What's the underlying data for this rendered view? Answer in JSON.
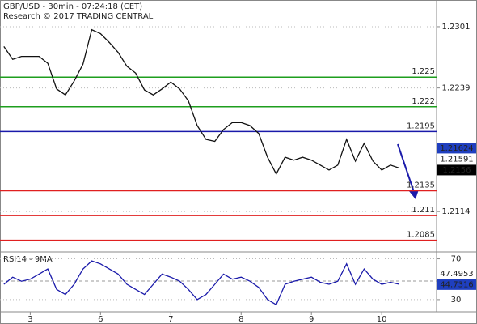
{
  "chart_data": [
    {
      "type": "line",
      "title": "GBP/USD - 30min - 07:24:18 (CET)",
      "subtitle": "Research © 2017 TRADING CENTRAL",
      "x": [
        -0.375,
        -0.25,
        -0.125,
        0,
        0.125,
        0.25,
        0.375,
        0.5,
        0.625,
        0.75,
        0.875,
        1,
        1.125,
        1.25,
        1.375,
        1.5,
        1.625,
        1.75,
        1.875,
        2,
        2.125,
        2.25,
        2.375,
        2.5,
        2.625,
        2.75,
        2.875,
        3,
        3.125,
        3.25,
        3.375,
        3.5,
        3.625,
        3.75,
        3.875,
        4,
        4.125,
        4.25,
        4.375,
        4.5,
        4.625,
        4.75,
        4.875,
        5,
        5.125,
        5.25
      ],
      "series": [
        {
          "name": "GBP/USD",
          "color": "#111111",
          "values": [
            1.2281,
            1.2268,
            1.2271,
            1.2271,
            1.2271,
            1.2264,
            1.2238,
            1.2232,
            1.2246,
            1.2263,
            1.2298,
            1.2294,
            1.2285,
            1.2275,
            1.2261,
            1.2254,
            1.2237,
            1.2232,
            1.2238,
            1.2245,
            1.2238,
            1.2226,
            1.2201,
            1.2187,
            1.2185,
            1.2197,
            1.2204,
            1.2204,
            1.2201,
            1.2193,
            1.2169,
            1.2152,
            1.2169,
            1.2166,
            1.2169,
            1.2166,
            1.2161,
            1.2156,
            1.2161,
            1.2187,
            1.2165,
            1.2183,
            1.2165,
            1.2156,
            1.2161,
            1.2158
          ]
        }
      ],
      "xlim": [
        -0.43,
        5.78
      ],
      "ylim": [
        1.2074,
        1.2328
      ],
      "yticks": [
        1.2301,
        1.2239,
        1.2114
      ],
      "grid": true,
      "levels": [
        {
          "value": 1.225,
          "color": "#1e9e1e"
        },
        {
          "value": 1.222,
          "color": "#1e9e1e"
        },
        {
          "value": 1.2195,
          "color": "#1a1aaa"
        },
        {
          "value": 1.2135,
          "color": "#e02020"
        },
        {
          "value": 1.211,
          "color": "#e02020"
        },
        {
          "value": 1.2085,
          "color": "#e02020"
        }
      ],
      "tags": [
        {
          "value": 1.21624,
          "background": "#1f3fbf",
          "color": "#ffffff"
        },
        {
          "value": 1.21591,
          "background": "#ffffff",
          "color": "#e02020"
        },
        {
          "value": 1.2156,
          "background": "#000000",
          "color": "#ffffff"
        }
      ]
    },
    {
      "type": "line",
      "title": "RSI14 - 9MA",
      "x": [
        -0.375,
        -0.25,
        -0.125,
        0,
        0.125,
        0.25,
        0.375,
        0.5,
        0.625,
        0.75,
        0.875,
        1,
        1.125,
        1.25,
        1.375,
        1.5,
        1.625,
        1.75,
        1.875,
        2,
        2.125,
        2.25,
        2.375,
        2.5,
        2.625,
        2.75,
        2.875,
        3,
        3.125,
        3.25,
        3.375,
        3.5,
        3.625,
        3.75,
        3.875,
        4,
        4.125,
        4.25,
        4.375,
        4.5,
        4.625,
        4.75,
        4.875,
        5,
        5.125,
        5.25
      ],
      "series": [
        {
          "name": "RSI14",
          "color": "#1a1aaa",
          "values": [
            45,
            52,
            48,
            50,
            55,
            60,
            40,
            35,
            45,
            60,
            68,
            65,
            60,
            55,
            45,
            40,
            35,
            45,
            55,
            52,
            48,
            40,
            30,
            35,
            45,
            55,
            50,
            52,
            48,
            42,
            30,
            25,
            45,
            48,
            50,
            52,
            47,
            45,
            48,
            65,
            45,
            60,
            50,
            45,
            47,
            45
          ]
        }
      ],
      "xlim": [
        -0.43,
        5.78
      ],
      "ylim": [
        18,
        76
      ],
      "yticks": [
        70,
        30
      ],
      "grid": true,
      "xticks": [
        {
          "value": 0,
          "label": "3"
        },
        {
          "value": 1,
          "label": "6"
        },
        {
          "value": 2,
          "label": "7"
        },
        {
          "value": 3,
          "label": "8"
        },
        {
          "value": 4,
          "label": "9"
        },
        {
          "value": 5,
          "label": "10"
        }
      ],
      "tags": [
        {
          "value": 47.4953,
          "background": "#ffffff",
          "color": "#e02020"
        },
        {
          "value": 44.7316,
          "background": "#1f3fbf",
          "color": "#ffffff"
        }
      ]
    }
  ]
}
